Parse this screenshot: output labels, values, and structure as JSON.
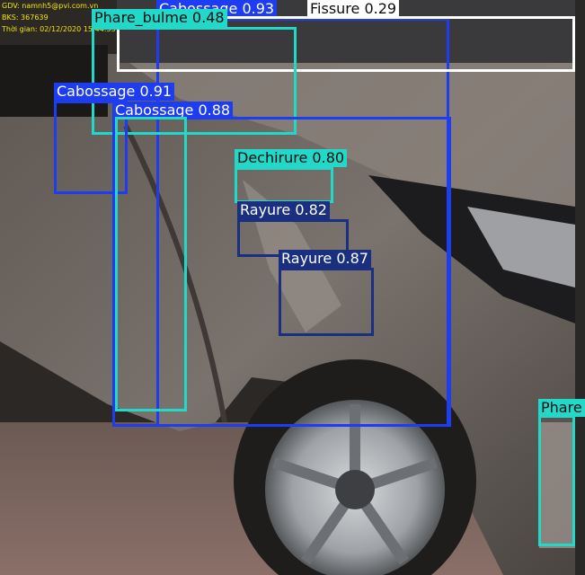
{
  "overlay": {
    "lines": [
      "GDV: namnh5@pvi.com.vn",
      "BKS: 367639",
      "Thời gian: 02/12/2020 15:44:53"
    ],
    "color": "#f2e600"
  },
  "detections": [
    {
      "label": "Cabossage 0.93",
      "border": "#1e3cf0",
      "fill": "#1e3cf0",
      "dark": false
    },
    {
      "label": "Phare_bulme 0.48",
      "border": "#22d8c8",
      "fill": "#22d8c8",
      "dark": true
    },
    {
      "label": "Fissure 0.29",
      "border": "#ffffff",
      "fill": "#ffffff",
      "dark": true
    },
    {
      "label": "Cabossage 0.91",
      "border": "#1e3cf0",
      "fill": "#1e3cf0",
      "dark": false
    },
    {
      "label": "Cabossage 0.88",
      "border": "#1e3cf0",
      "fill": "#1e3cf0",
      "dark": false
    },
    {
      "label": "Dechirure 0.80",
      "border": "#22d8c8",
      "fill": "#22d8c8",
      "dark": true
    },
    {
      "label": "Rayure 0.82",
      "border": "#1a2f80",
      "fill": "#1a2f80",
      "dark": false
    },
    {
      "label": "Rayure 0.87",
      "border": "#1a2f80",
      "fill": "#1a2f80",
      "dark": false
    },
    {
      "label": "Phare",
      "border": "#22d8c8",
      "fill": "#22d8c8",
      "dark": true
    },
    {
      "label": "",
      "border": "#22d8c8",
      "fill": "#22d8c8",
      "dark": true
    }
  ]
}
